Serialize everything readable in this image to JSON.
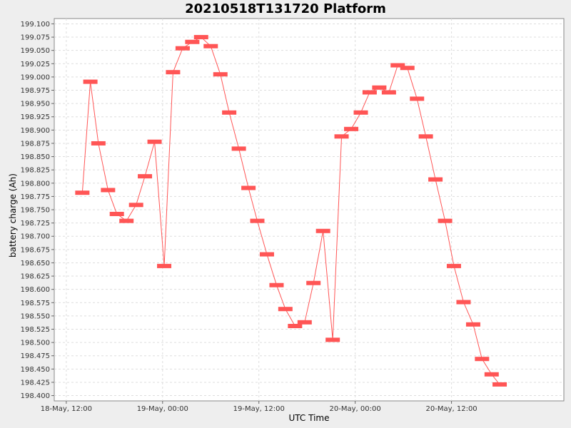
{
  "chart_data": {
    "type": "line",
    "title": "20210518T131720 Platform",
    "xlabel": "UTC Time",
    "ylabel": "battery charge (Ah)",
    "ylim": [
      198.39,
      199.11
    ],
    "xlim_hours": [
      -1.5,
      42.5
    ],
    "x_ticks": [
      {
        "hour": 0,
        "label": "18-May, 12:00"
      },
      {
        "hour": 12,
        "label": "19-May, 00:00"
      },
      {
        "hour": 24,
        "label": "19-May, 12:00"
      },
      {
        "hour": 36,
        "label": "20-May, 00:00"
      },
      {
        "hour": 48,
        "label": "20-May, 12:00"
      }
    ],
    "y_ticks": [
      "198.400",
      "198.425",
      "198.450",
      "198.475",
      "198.500",
      "198.525",
      "198.550",
      "198.575",
      "198.600",
      "198.625",
      "198.650",
      "198.675",
      "198.700",
      "198.725",
      "198.750",
      "198.775",
      "198.800",
      "198.825",
      "198.850",
      "198.875",
      "198.900",
      "198.925",
      "198.950",
      "198.975",
      "199.000",
      "199.025",
      "199.050",
      "199.075",
      "199.100"
    ],
    "grid": true,
    "legend": "none",
    "series_color": "#ff5555",
    "time_axis": "datetime, hours from 18-May 12:00 UTC",
    "points": [
      {
        "x": 2.0,
        "y": 198.782
      },
      {
        "x": 3.0,
        "y": 198.991
      },
      {
        "x": 4.0,
        "y": 198.875
      },
      {
        "x": 5.2,
        "y": 198.787
      },
      {
        "x": 6.3,
        "y": 198.742
      },
      {
        "x": 7.5,
        "y": 198.729
      },
      {
        "x": 8.7,
        "y": 198.759
      },
      {
        "x": 9.8,
        "y": 198.813
      },
      {
        "x": 11.0,
        "y": 198.878
      },
      {
        "x": 12.2,
        "y": 198.644
      },
      {
        "x": 13.3,
        "y": 199.009
      },
      {
        "x": 14.5,
        "y": 199.054
      },
      {
        "x": 15.7,
        "y": 199.066
      },
      {
        "x": 16.8,
        "y": 199.075
      },
      {
        "x": 18.0,
        "y": 199.058
      },
      {
        "x": 19.2,
        "y": 199.005
      },
      {
        "x": 20.3,
        "y": 198.933
      },
      {
        "x": 21.5,
        "y": 198.865
      },
      {
        "x": 22.7,
        "y": 198.791
      },
      {
        "x": 23.8,
        "y": 198.729
      },
      {
        "x": 25.0,
        "y": 198.666
      },
      {
        "x": 26.2,
        "y": 198.608
      },
      {
        "x": 27.3,
        "y": 198.563
      },
      {
        "x": 28.5,
        "y": 198.531
      },
      {
        "x": 29.7,
        "y": 198.538
      },
      {
        "x": 30.8,
        "y": 198.612
      },
      {
        "x": 32.0,
        "y": 198.71
      },
      {
        "x": 33.2,
        "y": 198.505
      },
      {
        "x": 34.3,
        "y": 198.888
      },
      {
        "x": 35.5,
        "y": 198.902
      },
      {
        "x": 36.7,
        "y": 198.933
      },
      {
        "x": 37.8,
        "y": 198.971
      },
      {
        "x": 39.0,
        "y": 198.98
      },
      {
        "x": 40.2,
        "y": 198.971
      },
      {
        "x": 41.3,
        "y": 199.022
      },
      {
        "x": 42.5,
        "y": 199.017
      },
      {
        "x": 43.7,
        "y": 198.959
      },
      {
        "x": 44.8,
        "y": 198.888
      },
      {
        "x": 46.0,
        "y": 198.807
      },
      {
        "x": 47.2,
        "y": 198.729
      },
      {
        "x": 48.3,
        "y": 198.644
      },
      {
        "x": 49.5,
        "y": 198.576
      },
      {
        "x": 50.7,
        "y": 198.534
      },
      {
        "x": 51.8,
        "y": 198.469
      },
      {
        "x": 53.0,
        "y": 198.44
      },
      {
        "x": 54.0,
        "y": 198.421
      }
    ]
  }
}
